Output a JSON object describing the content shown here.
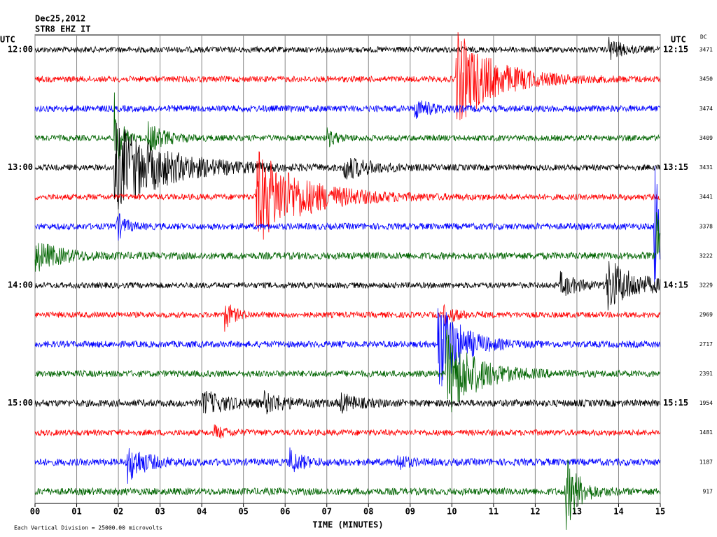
{
  "header": {
    "date": "Dec25,2012",
    "station": "STR8 EHZ IT",
    "utc_left": "UTC",
    "utc_right": "UTC",
    "dc": "DC"
  },
  "chart_data": {
    "type": "helicorder",
    "xlabel": "TIME (MINUTES)",
    "note": "Each Vertical Division = 25000.00 microvolts",
    "xlim": [
      0,
      15
    ],
    "xticks": [
      {
        "value": 0,
        "label": "00"
      },
      {
        "value": 1,
        "label": "01"
      },
      {
        "value": 2,
        "label": "02"
      },
      {
        "value": 3,
        "label": "03"
      },
      {
        "value": 4,
        "label": "04"
      },
      {
        "value": 5,
        "label": "05"
      },
      {
        "value": 6,
        "label": "06"
      },
      {
        "value": 7,
        "label": "07"
      },
      {
        "value": 8,
        "label": "08"
      },
      {
        "value": 9,
        "label": "09"
      },
      {
        "value": 10,
        "label": "10"
      },
      {
        "value": 11,
        "label": "11"
      },
      {
        "value": 12,
        "label": "12"
      },
      {
        "value": 13,
        "label": "13"
      },
      {
        "value": 14,
        "label": "14"
      },
      {
        "value": 15,
        "label": "15"
      }
    ],
    "rows": [
      {
        "left": "12:00",
        "right": "12:15",
        "dc": 3471,
        "color": "#000000",
        "noise": 0.1,
        "events": [
          {
            "minute": 13.75,
            "amp": 0.4,
            "duration": 0.3
          }
        ]
      },
      {
        "left": null,
        "right": null,
        "dc": 3450,
        "color": "#ff0000",
        "noise": 0.1,
        "events": [
          {
            "minute": 10.1,
            "amp": 1.6,
            "duration": 0.9
          }
        ]
      },
      {
        "left": null,
        "right": null,
        "dc": 3474,
        "color": "#0000ff",
        "noise": 0.11,
        "events": [
          {
            "minute": 9.1,
            "amp": 0.3,
            "duration": 0.4
          }
        ]
      },
      {
        "left": null,
        "right": null,
        "dc": 3409,
        "color": "#006400",
        "noise": 0.1,
        "events": [
          {
            "minute": 1.9,
            "amp": 1.5,
            "duration": 0.15
          },
          {
            "minute": 2.7,
            "amp": 0.5,
            "duration": 0.4
          },
          {
            "minute": 7.0,
            "amp": 0.3,
            "duration": 0.2
          }
        ]
      },
      {
        "left": "13:00",
        "right": "13:15",
        "dc": 3431,
        "color": "#000000",
        "noise": 0.1,
        "events": [
          {
            "minute": 1.9,
            "amp": 1.5,
            "duration": 1.2
          },
          {
            "minute": 7.4,
            "amp": 0.4,
            "duration": 0.6
          }
        ]
      },
      {
        "left": null,
        "right": null,
        "dc": 3441,
        "color": "#ff0000",
        "noise": 0.1,
        "events": [
          {
            "minute": 5.3,
            "amp": 1.6,
            "duration": 1.1
          }
        ]
      },
      {
        "left": null,
        "right": null,
        "dc": 3378,
        "color": "#0000ff",
        "noise": 0.11,
        "events": [
          {
            "minute": 1.95,
            "amp": 0.5,
            "duration": 0.2
          },
          {
            "minute": 14.85,
            "amp": 2.5,
            "duration": 0.4
          }
        ]
      },
      {
        "left": null,
        "right": null,
        "dc": 3222,
        "color": "#006400",
        "noise": 0.12,
        "events": [
          {
            "minute": 0.0,
            "amp": 0.5,
            "duration": 0.6
          },
          {
            "minute": 14.9,
            "amp": 1.5,
            "duration": 0.3
          }
        ]
      },
      {
        "left": "14:00",
        "right": "14:15",
        "dc": 3229,
        "color": "#000000",
        "noise": 0.1,
        "events": [
          {
            "minute": 12.6,
            "amp": 0.4,
            "duration": 0.4
          },
          {
            "minute": 13.7,
            "amp": 0.9,
            "duration": 0.7
          }
        ]
      },
      {
        "left": null,
        "right": null,
        "dc": 2969,
        "color": "#ff0000",
        "noise": 0.1,
        "events": [
          {
            "minute": 4.55,
            "amp": 0.5,
            "duration": 0.2
          },
          {
            "minute": 9.8,
            "amp": 0.3,
            "duration": 0.3
          }
        ]
      },
      {
        "left": null,
        "right": null,
        "dc": 2717,
        "color": "#0000ff",
        "noise": 0.11,
        "events": [
          {
            "minute": 9.65,
            "amp": 1.8,
            "duration": 0.5
          }
        ]
      },
      {
        "left": null,
        "right": null,
        "dc": 2391,
        "color": "#006400",
        "noise": 0.11,
        "events": [
          {
            "minute": 9.85,
            "amp": 1.5,
            "duration": 0.7
          }
        ]
      },
      {
        "left": "15:00",
        "right": "15:15",
        "dc": 1954,
        "color": "#000000",
        "noise": 0.12,
        "events": [
          {
            "minute": 4.0,
            "amp": 0.4,
            "duration": 0.6
          },
          {
            "minute": 5.5,
            "amp": 0.3,
            "duration": 0.5
          },
          {
            "minute": 7.3,
            "amp": 0.3,
            "duration": 0.4
          }
        ]
      },
      {
        "left": null,
        "right": null,
        "dc": 1481,
        "color": "#ff0000",
        "noise": 0.1,
        "events": [
          {
            "minute": 4.3,
            "amp": 0.2,
            "duration": 0.3
          }
        ]
      },
      {
        "left": null,
        "right": null,
        "dc": 1187,
        "color": "#0000ff",
        "noise": 0.12,
        "events": [
          {
            "minute": 2.2,
            "amp": 0.7,
            "duration": 0.4
          },
          {
            "minute": 6.1,
            "amp": 0.4,
            "duration": 0.3
          },
          {
            "minute": 8.7,
            "amp": 0.3,
            "duration": 0.2
          }
        ]
      },
      {
        "left": null,
        "right": null,
        "dc": 917,
        "color": "#006400",
        "noise": 0.12,
        "events": [
          {
            "minute": 12.7,
            "amp": 1.4,
            "duration": 0.3
          }
        ]
      }
    ]
  }
}
